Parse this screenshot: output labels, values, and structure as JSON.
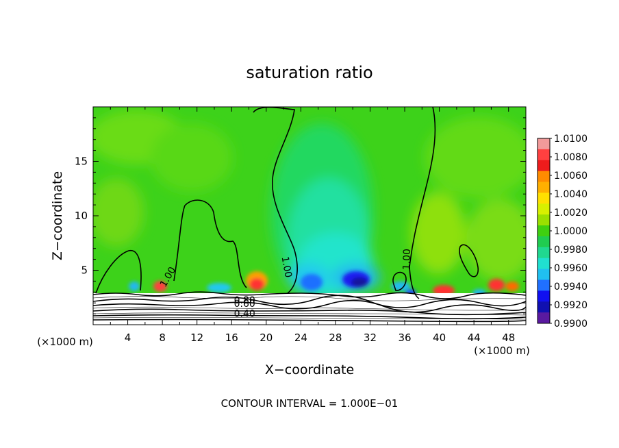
{
  "chart_data": {
    "type": "heatmap",
    "title": "saturation ratio",
    "xlabel": "X−coordinate",
    "ylabel": "Z−coordinate",
    "x_unit_left": "(×1000 m)",
    "x_unit_right": "(×1000 m)",
    "footer": "CONTOUR INTERVAL = 1.000E−01",
    "xlim": [
      0,
      50
    ],
    "ylim": [
      0,
      20
    ],
    "x_ticks": [
      4,
      8,
      12,
      16,
      20,
      24,
      28,
      32,
      36,
      40,
      44,
      48
    ],
    "x_tick_labels": [
      "4",
      "8",
      "12",
      "16",
      "20",
      "24",
      "28",
      "32",
      "36",
      "40",
      "44",
      "48"
    ],
    "y_ticks": [
      5,
      10,
      15
    ],
    "y_tick_labels": [
      "5",
      "10",
      "15"
    ],
    "colorbar": {
      "min": 0.99,
      "max": 1.01,
      "labels": [
        "1.0100",
        "1.0080",
        "1.0060",
        "1.0040",
        "1.0020",
        "1.0000",
        "0.9980",
        "0.9960",
        "0.9940",
        "0.9920",
        "0.9900"
      ],
      "colors": [
        "#f29a9a",
        "#ff4040",
        "#ee1c1c",
        "#ff8c00",
        "#ffb000",
        "#ffe000",
        "#d8f000",
        "#9be000",
        "#3fd010",
        "#20cc50",
        "#20d890",
        "#20e0d0",
        "#20c0f0",
        "#2070ff",
        "#1010f0",
        "#1010b0",
        "#5a1aa0"
      ]
    },
    "contour_labels": [
      {
        "text": "1.00",
        "x": 8.6,
        "z": 4.4,
        "rotate": -60
      },
      {
        "text": "1.00",
        "x": 22.4,
        "z": 5.3,
        "rotate": 80
      },
      {
        "text": "1.00",
        "x": 36.2,
        "z": 6.0,
        "rotate": -88
      },
      {
        "text": "0.80",
        "x": 17.5,
        "z": 2.25,
        "rotate": 0
      },
      {
        "text": "0.60",
        "x": 17.5,
        "z": 1.95,
        "rotate": 0
      },
      {
        "text": "0.40",
        "x": 17.5,
        "z": 1.05,
        "rotate": 0
      }
    ]
  }
}
